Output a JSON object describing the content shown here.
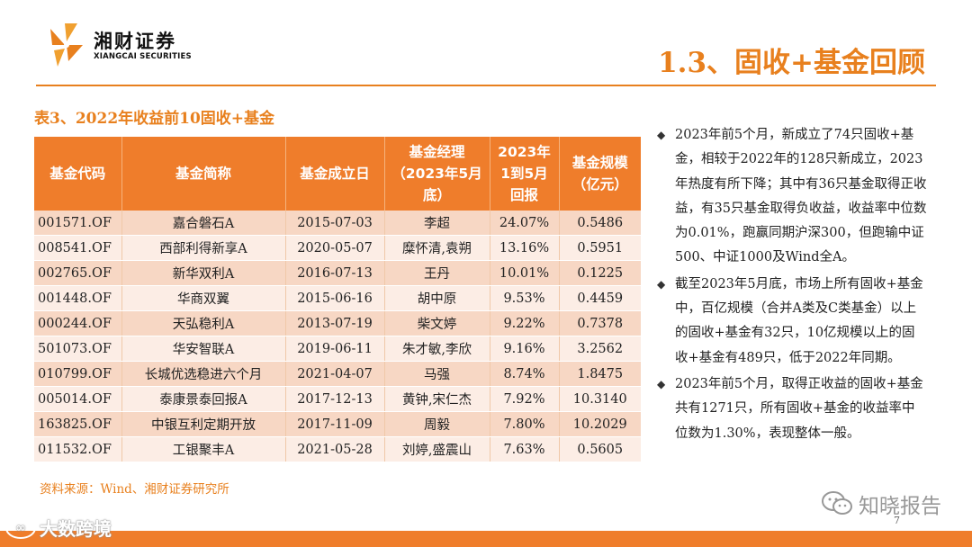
{
  "header": {
    "brand_cn": "湘财证券",
    "brand_en": "XIANGCAI SECURITIES",
    "page_title": "1.3、固收+基金回顾"
  },
  "colors": {
    "accent": "#e8801e",
    "header_fill": "#ef7d2b",
    "row_odd": "#f7d7c4",
    "row_even": "#fcede5"
  },
  "table": {
    "caption": "表3、2022年收益前10固收+基金",
    "columns": [
      {
        "lines": [
          "基金代码"
        ]
      },
      {
        "lines": [
          "基金简称"
        ]
      },
      {
        "lines": [
          "基金成立日"
        ]
      },
      {
        "lines": [
          "基金经理",
          "（2023年5月",
          "底）"
        ]
      },
      {
        "lines": [
          "2023年",
          "1到5月",
          "回报"
        ]
      },
      {
        "lines": [
          "基金规模",
          "（亿元）"
        ]
      }
    ],
    "rows": [
      {
        "code": "001571.OF",
        "name": "嘉合磐石A",
        "inception": "2015-07-03",
        "manager": "李超",
        "return": "24.07%",
        "size": "0.5486"
      },
      {
        "code": "008541.OF",
        "name": "西部利得新享A",
        "inception": "2020-05-07",
        "manager": "糜怀清,袁朔",
        "return": "13.16%",
        "size": "0.5951"
      },
      {
        "code": "002765.OF",
        "name": "新华双利A",
        "inception": "2016-07-13",
        "manager": "王丹",
        "return": "10.01%",
        "size": "0.1225"
      },
      {
        "code": "001448.OF",
        "name": "华商双翼",
        "inception": "2015-06-16",
        "manager": "胡中原",
        "return": "9.53%",
        "size": "0.4459"
      },
      {
        "code": "000244.OF",
        "name": "天弘稳利A",
        "inception": "2013-07-19",
        "manager": "柴文婷",
        "return": "9.22%",
        "size": "0.7378"
      },
      {
        "code": "501073.OF",
        "name": "华安智联A",
        "inception": "2019-06-11",
        "manager": "朱才敏,李欣",
        "return": "9.16%",
        "size": "3.2562"
      },
      {
        "code": "010799.OF",
        "name": "长城优选稳进六个月",
        "inception": "2021-04-07",
        "manager": "马强",
        "return": "8.74%",
        "size": "1.8475"
      },
      {
        "code": "005014.OF",
        "name": "泰康景泰回报A",
        "inception": "2017-12-13",
        "manager": "黄钟,宋仁杰",
        "return": "7.92%",
        "size": "10.3140"
      },
      {
        "code": "163825.OF",
        "name": "中银互利定期开放",
        "inception": "2017-11-09",
        "manager": "周毅",
        "return": "7.80%",
        "size": "10.2029"
      },
      {
        "code": "011532.OF",
        "name": "工银聚丰A",
        "inception": "2021-05-28",
        "manager": "刘婷,盛震山",
        "return": "7.63%",
        "size": "0.5605"
      }
    ],
    "source": "资料来源：Wind、湘财证券研究所"
  },
  "bullets": [
    "2023年前5个月，新成立了74只固收+基金，相较于2022年的128只新成立，2023年热度有所下降；其中有36只基金取得正收益，有35只基金取得负收益，收益率中位数为0.01%，跑赢同期沪深300，但跑输中证500、中证1000及Wind全A。",
    "截至2023年5月底，市场上所有固收+基金中，百亿规模（合并A类及C类基金）以上的固收+基金有32只，10亿规模以上的固收+基金有489只，低于2022年同期。",
    "2023年前5个月，取得正收益的固收+基金共有1271只，所有固收+基金的收益率中位数为1.30%，表现整体一般。"
  ],
  "watermark": {
    "text": "知晓报告"
  },
  "page_number": "7",
  "footer": {
    "logo_text": "大数跨境"
  }
}
